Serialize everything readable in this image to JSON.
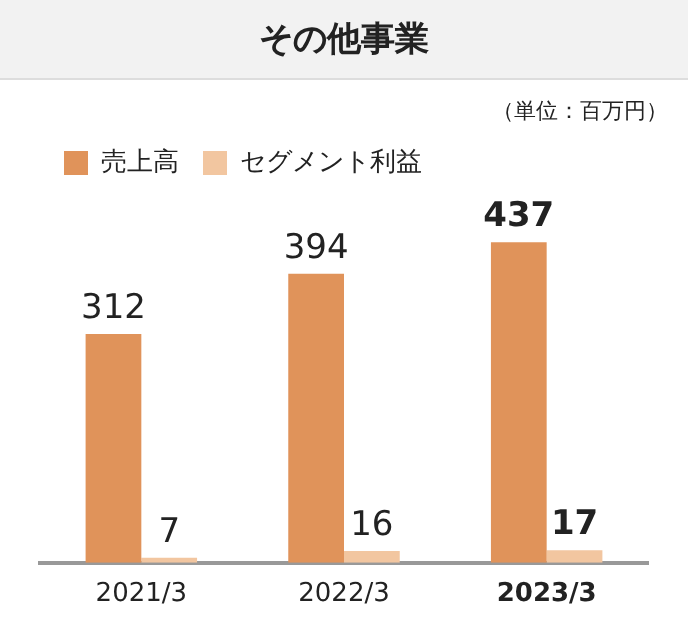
{
  "chart_data": {
    "type": "bar",
    "title": "その他事業",
    "annotations": [
      "（単位：百万円）"
    ],
    "categories": [
      "2021/3",
      "2022/3",
      "2023/3"
    ],
    "series": [
      {
        "name": "売上高",
        "color": "#e0935a",
        "values": [
          312,
          394,
          437
        ]
      },
      {
        "name": "セグメント利益",
        "color": "#f2c6a0",
        "values": [
          7,
          16,
          17
        ]
      }
    ],
    "data_labels": true,
    "legend": "top left",
    "grid": false
  }
}
